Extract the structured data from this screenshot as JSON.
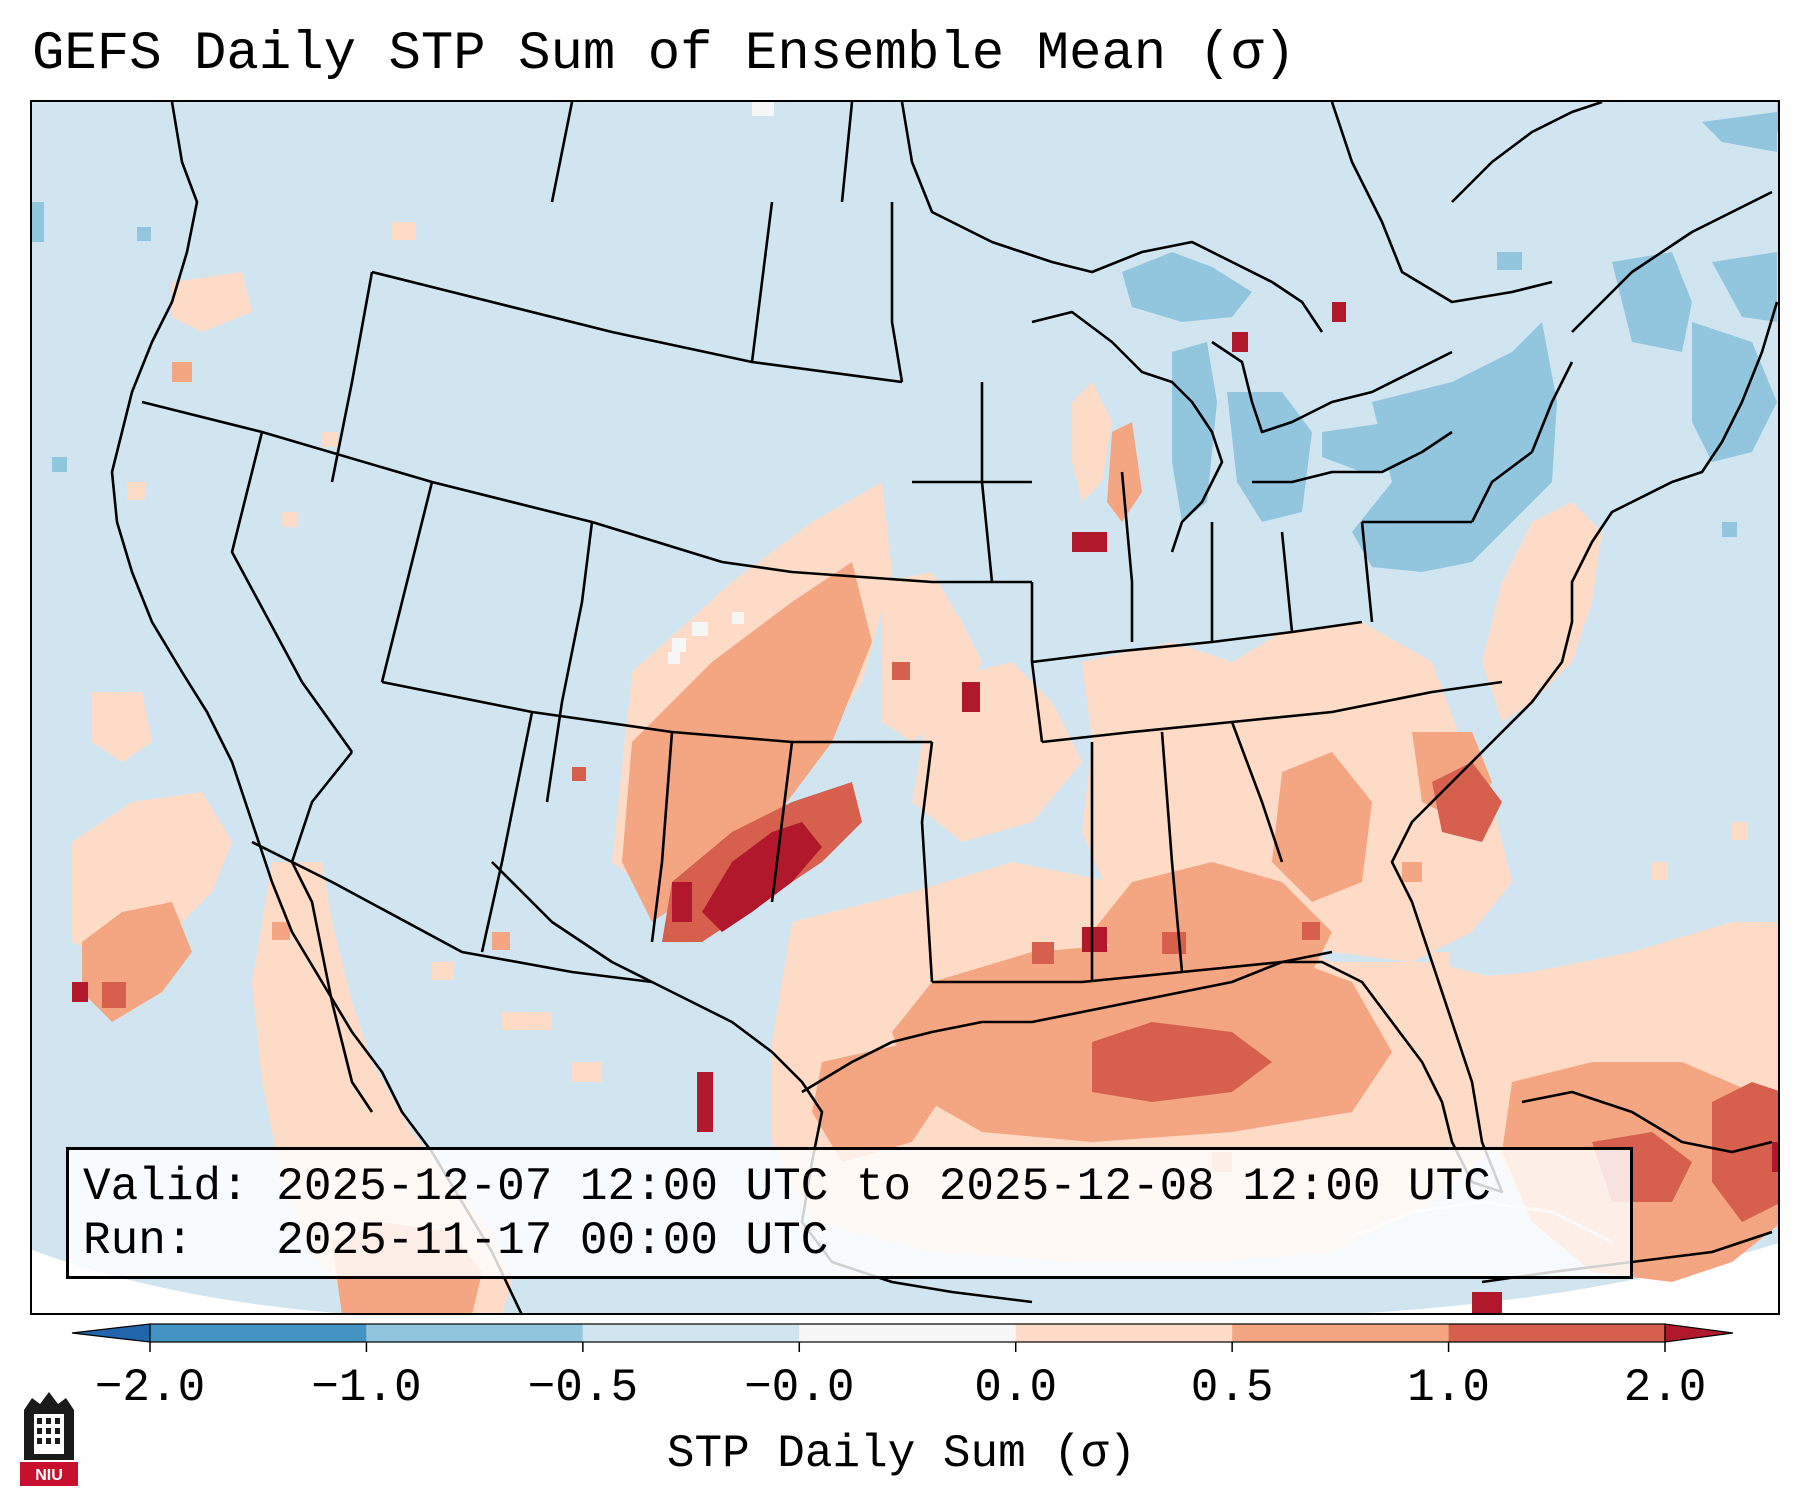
{
  "title": "GEFS Daily STP Sum of Ensemble Mean (σ)",
  "info": {
    "valid_label": "Valid:",
    "valid_value": "2025-12-07 12:00 UTC to 2025-12-08 12:00 UTC",
    "run_label": "Run:",
    "run_value": "2025-11-17 00:00 UTC"
  },
  "colorbar": {
    "label": "STP Daily Sum (σ)",
    "ticks": [
      "−2.0",
      "−1.0",
      "−0.5",
      "−0.0",
      "0.0",
      "0.5",
      "1.0",
      "2.0"
    ],
    "colors": [
      "#4393c3",
      "#92c5de",
      "#d1e5f0",
      "#f7f7f7",
      "#fddbc7",
      "#f4a582",
      "#d6604d"
    ],
    "under_color": "#2166ac",
    "over_color": "#b2182b"
  },
  "map": {
    "background_color": "#d1e5f0",
    "projection": "Lambert Conformal, CONUS"
  },
  "logo": {
    "text": "NIU",
    "color": "#c8102e"
  }
}
